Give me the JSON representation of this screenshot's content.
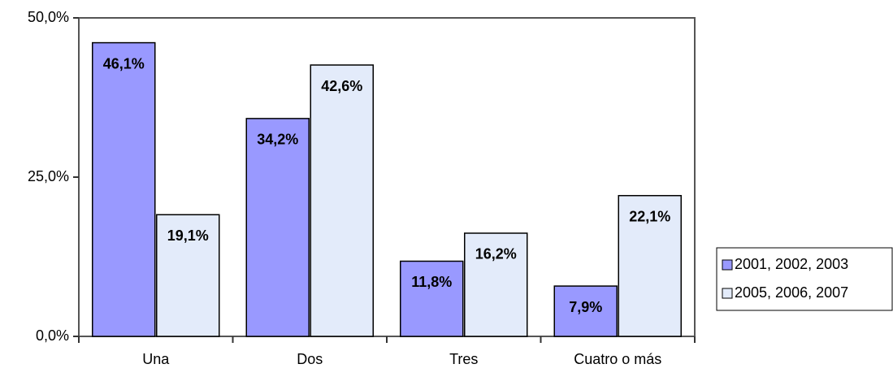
{
  "chart_data": {
    "type": "bar",
    "categories": [
      "Una",
      "Dos",
      "Tres",
      "Cuatro o más"
    ],
    "series": [
      {
        "name": "2001, 2002, 2003",
        "color": "#9999ff",
        "values": [
          46.1,
          34.2,
          11.8,
          7.9
        ],
        "value_labels": [
          "46,1%",
          "34,2%",
          "11,8%",
          "7,9%"
        ]
      },
      {
        "name": "2005, 2006, 2007",
        "color": "#e3ebfa",
        "values": [
          19.1,
          42.6,
          16.2,
          22.1
        ],
        "value_labels": [
          "19,1%",
          "42,6%",
          "16,2%",
          "22,1%"
        ]
      }
    ],
    "ylim": [
      0,
      50
    ],
    "yticks": [
      {
        "value": 0,
        "label": "0,0%"
      },
      {
        "value": 25,
        "label": "25,0%"
      },
      {
        "value": 50,
        "label": "50,0%"
      }
    ],
    "legend": "right"
  }
}
